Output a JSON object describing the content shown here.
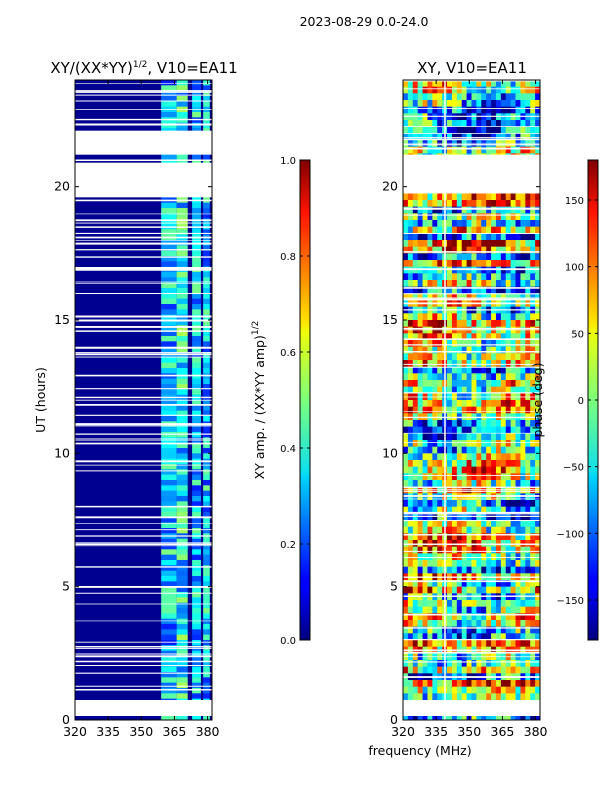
{
  "figure": {
    "suptitle": "2023-08-29 0.0-24.0",
    "xlabel": "frequency (MHz)"
  },
  "chart_data": [
    {
      "type": "heatmap",
      "title": "XY/(XX*YY)",
      "title_sup": "1/2",
      "title_suffix": ", V10=EA11",
      "ylabel": "UT (hours)",
      "xlim": [
        320,
        382
      ],
      "ylim": [
        0,
        24
      ],
      "xticks": [
        320,
        335,
        350,
        365,
        380
      ],
      "yticks": [
        0,
        5,
        10,
        15,
        20
      ],
      "flag_bands_hours": [
        [
          0.15,
          0.75
        ],
        [
          21.2,
          22.1
        ],
        [
          19.6,
          20.9
        ]
      ],
      "bright_freq_bands_mhz": [
        [
          359,
          366
        ],
        [
          366,
          371
        ],
        [
          373,
          377
        ],
        [
          378,
          381
        ]
      ],
      "colorbar": {
        "label": "XY amp. / (XX*YY amp)",
        "label_sup": "1/2",
        "range": [
          0.0,
          1.0
        ],
        "ticks": [
          "0.0",
          "0.2",
          "0.4",
          "0.6",
          "0.8",
          "1.0"
        ]
      }
    },
    {
      "type": "heatmap",
      "title": "XY, V10=EA11",
      "ylabel": "",
      "xlim": [
        320,
        382
      ],
      "ylim": [
        0,
        24
      ],
      "xticks": [
        320,
        335,
        350,
        365,
        380
      ],
      "yticks": [
        0,
        5,
        10,
        15,
        20
      ],
      "flag_bands_hours": [
        [
          0.15,
          0.75
        ],
        [
          19.8,
          21.2
        ]
      ],
      "colorbar": {
        "label": "phase (deg)",
        "range": [
          -180,
          180
        ],
        "ticks": [
          "−150",
          "−100",
          "−50",
          "0",
          "50",
          "100",
          "150"
        ]
      }
    }
  ]
}
